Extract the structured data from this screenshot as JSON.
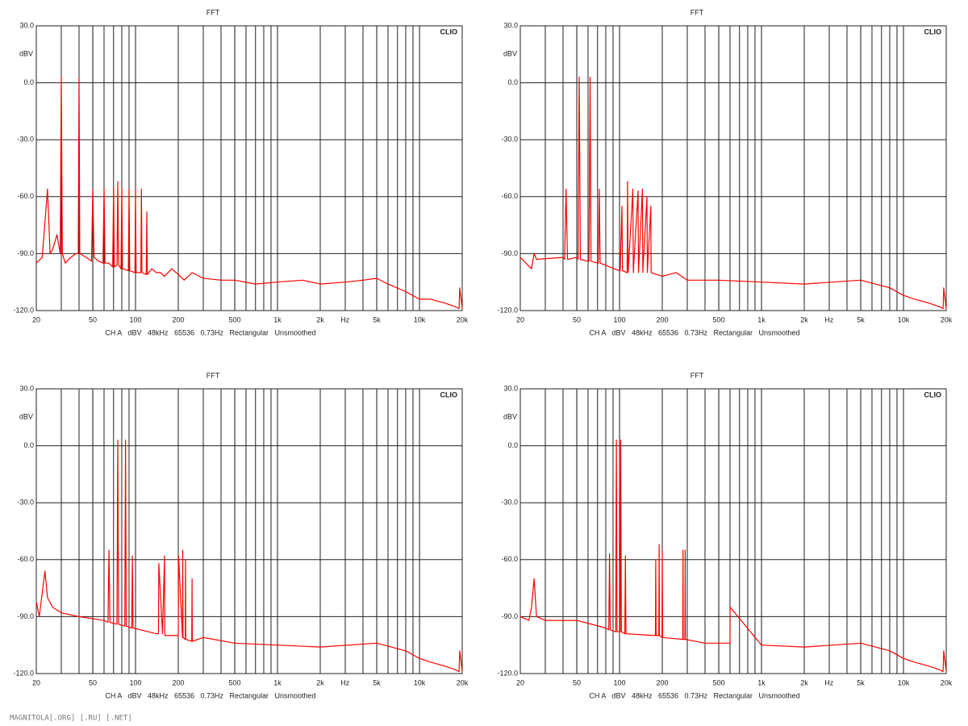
{
  "chart_data": [
    {
      "type": "line",
      "title": "FFT",
      "ylabel": "dBV",
      "xlabel": "Hz",
      "brand": "CLIO",
      "footer": "CH A   dBV   48kHz   65536   0.73Hz   Rectangular   Unsmoothed",
      "xscale": "log",
      "minor_grid": true,
      "color": "#ff0000",
      "xlim": [
        20,
        20000
      ],
      "ylim": [
        -120,
        30
      ],
      "xticks": [
        20,
        50,
        100,
        200,
        500,
        {
          "value": 1000,
          "label": "1k"
        },
        {
          "value": 2000,
          "label": "2k"
        },
        {
          "value": 5000,
          "label": "5k"
        },
        {
          "value": 10000,
          "label": "10k"
        },
        {
          "value": 20000,
          "label": "20k"
        }
      ],
      "yticks": [
        {
          "value": 30,
          "label": "30.0"
        },
        {
          "value": 0,
          "label": "0.0"
        },
        {
          "value": -30,
          "label": "-30.0"
        },
        {
          "value": -60,
          "label": "-60.0"
        },
        {
          "value": -90,
          "label": "-90.0"
        },
        {
          "value": -120,
          "label": "-120.0"
        }
      ],
      "x": [
        20,
        22,
        24,
        25,
        26,
        28,
        29.5,
        30,
        30.5,
        32,
        35,
        38,
        39.5,
        40,
        40.5,
        45,
        49,
        50,
        51,
        55,
        59,
        60,
        61,
        65,
        69,
        70,
        71,
        74,
        75,
        76,
        79,
        80,
        81,
        89,
        90,
        91,
        99,
        100,
        101,
        109,
        110,
        111,
        119,
        120,
        121,
        130,
        140,
        150,
        160,
        180,
        200,
        220,
        250,
        300,
        400,
        500,
        700,
        1000,
        1500,
        2000,
        3000,
        4000,
        5000,
        6000,
        8000,
        10000,
        12000,
        15000,
        18000,
        19000,
        19200,
        20000
      ],
      "values": [
        -95,
        -92,
        -56,
        -90,
        -88,
        -80,
        -90,
        3,
        -90,
        -95,
        -92,
        -90,
        -90,
        3,
        -90,
        -92,
        -94,
        -56,
        -92,
        -94,
        -95,
        -56,
        -95,
        -95,
        -97,
        -55,
        -97,
        -96,
        -52,
        -96,
        -98,
        -56,
        -98,
        -99,
        -56,
        -99,
        -100,
        -57,
        -100,
        -100,
        -56,
        -100,
        -101,
        -68,
        -101,
        -98,
        -100,
        -100,
        -102,
        -98,
        -101,
        -104,
        -100,
        -103,
        -104,
        -104,
        -106,
        -105,
        -104,
        -106,
        -105,
        -104,
        -103,
        -106,
        -110,
        -114,
        -114,
        -116,
        -118,
        -119,
        -108,
        -119
      ]
    },
    {
      "type": "line",
      "title": "FFT",
      "ylabel": "dBV",
      "xlabel": "Hz",
      "brand": "CLIO",
      "footer": "CH A   dBV   48kHz   65536   0.73Hz   Rectangular   Unsmoothed",
      "xscale": "log",
      "minor_grid": true,
      "color": "#ff0000",
      "xlim": [
        20,
        20000
      ],
      "ylim": [
        -120,
        30
      ],
      "xticks": [
        20,
        50,
        100,
        200,
        500,
        {
          "value": 1000,
          "label": "1k"
        },
        {
          "value": 2000,
          "label": "2k"
        },
        {
          "value": 5000,
          "label": "5k"
        },
        {
          "value": 10000,
          "label": "10k"
        },
        {
          "value": 20000,
          "label": "20k"
        }
      ],
      "yticks": [
        {
          "value": 30,
          "label": "30.0"
        },
        {
          "value": 0,
          "label": "0.0"
        },
        {
          "value": -30,
          "label": "-30.0"
        },
        {
          "value": -60,
          "label": "-60.0"
        },
        {
          "value": -90,
          "label": "-90.0"
        },
        {
          "value": -120,
          "label": "-120.0"
        }
      ],
      "x": [
        20,
        24,
        25,
        26,
        40,
        41,
        42,
        43,
        50,
        51,
        52,
        53,
        60,
        61,
        62,
        63,
        70,
        71,
        72,
        73,
        100,
        101,
        104,
        105,
        113,
        114,
        115,
        124,
        125,
        135,
        136,
        145,
        146,
        156,
        157,
        166,
        167,
        200,
        250,
        300,
        400,
        500,
        1000,
        2000,
        5000,
        8000,
        10000,
        12000,
        15000,
        18000,
        19000,
        19200,
        20000
      ],
      "values": [
        -92,
        -98,
        -90,
        -93,
        -92,
        -93,
        -56,
        -93,
        -92,
        -93,
        3,
        -93,
        -94,
        -94,
        3,
        -94,
        -95,
        -95,
        -56,
        -95,
        -99,
        -99,
        -65,
        -99,
        -100,
        -52,
        -100,
        -56,
        -100,
        -57,
        -100,
        -56,
        -100,
        -60,
        -100,
        -65,
        -100,
        -102,
        -100,
        -104,
        -104,
        -104,
        -105,
        -106,
        -104,
        -108,
        -112,
        -114,
        -116,
        -118,
        -119,
        -108,
        -119
      ]
    },
    {
      "type": "line",
      "title": "FFT",
      "ylabel": "dBV",
      "xlabel": "Hz",
      "brand": "CLIO",
      "footer": "CH A   dBV   48kHz   65536   0.73Hz   Rectangular   Unsmoothed",
      "xscale": "log",
      "minor_grid": true,
      "color": "#ff0000",
      "xlim": [
        20,
        20000
      ],
      "ylim": [
        -120,
        30
      ],
      "xticks": [
        20,
        50,
        100,
        200,
        500,
        {
          "value": 1000,
          "label": "1k"
        },
        {
          "value": 2000,
          "label": "2k"
        },
        {
          "value": 5000,
          "label": "5k"
        },
        {
          "value": 10000,
          "label": "10k"
        },
        {
          "value": 20000,
          "label": "20k"
        }
      ],
      "yticks": [
        {
          "value": 30,
          "label": "30.0"
        },
        {
          "value": 0,
          "label": "0.0"
        },
        {
          "value": -30,
          "label": "-30.0"
        },
        {
          "value": -60,
          "label": "-60.0"
        },
        {
          "value": -90,
          "label": "-90.0"
        },
        {
          "value": -120,
          "label": "-120.0"
        }
      ],
      "x": [
        20,
        21,
        23,
        24,
        26,
        30,
        40,
        60,
        64,
        65,
        66,
        74,
        75,
        76,
        84,
        85,
        86,
        94,
        95,
        96,
        140,
        145,
        146,
        155,
        160,
        161,
        190,
        200,
        201,
        214,
        215,
        216,
        224,
        225,
        226,
        249,
        250,
        251,
        300,
        500,
        1000,
        2000,
        5000,
        8000,
        10000,
        12000,
        15000,
        18000,
        19000,
        19200,
        20000
      ],
      "values": [
        -82,
        -90,
        -66,
        -80,
        -85,
        -88,
        -90,
        -92,
        -93,
        -55,
        -93,
        -94,
        3,
        -94,
        -95,
        3,
        -95,
        -96,
        -58,
        -96,
        -99,
        -99,
        -62,
        -99,
        -58,
        -100,
        -100,
        -100,
        -58,
        -101,
        -55,
        -101,
        -102,
        -60,
        -102,
        -103,
        -70,
        -103,
        -101,
        -104,
        -105,
        -106,
        -104,
        -108,
        -112,
        -114,
        -116,
        -118,
        -119,
        -108,
        -119
      ]
    },
    {
      "type": "line",
      "title": "FFT",
      "ylabel": "dBV",
      "xlabel": "Hz",
      "brand": "CLIO",
      "footer": "CH A   dBV   48kHz   65536   0.73Hz   Rectangular   Unsmoothed",
      "xscale": "log",
      "minor_grid": true,
      "color": "#ff0000",
      "xlim": [
        20,
        20000
      ],
      "ylim": [
        -120,
        30
      ],
      "xticks": [
        20,
        50,
        100,
        200,
        500,
        {
          "value": 1000,
          "label": "1k"
        },
        {
          "value": 2000,
          "label": "2k"
        },
        {
          "value": 5000,
          "label": "5k"
        },
        {
          "value": 10000,
          "label": "10k"
        },
        {
          "value": 20000,
          "label": "20k"
        }
      ],
      "yticks": [
        {
          "value": 30,
          "label": "30.0"
        },
        {
          "value": 0,
          "label": "0.0"
        },
        {
          "value": -30,
          "label": "-30.0"
        },
        {
          "value": -60,
          "label": "-60.0"
        },
        {
          "value": -90,
          "label": "-90.0"
        },
        {
          "value": -120,
          "label": "-120.0"
        }
      ],
      "x": [
        20,
        23,
        24,
        25,
        26,
        30,
        50,
        80,
        84,
        85,
        86,
        94,
        95,
        96,
        101,
        102,
        103,
        109,
        110,
        111,
        179,
        180,
        181,
        189,
        190,
        191,
        199,
        200,
        201,
        279,
        280,
        281,
        289,
        290,
        291,
        400,
        600,
        601,
        1000,
        2000,
        5000,
        8000,
        10000,
        12000,
        15000,
        18000,
        19000,
        19200,
        20000
      ],
      "values": [
        -90,
        -92,
        -85,
        -70,
        -90,
        -92,
        -92,
        -96,
        -97,
        -57,
        -97,
        -98,
        3,
        -98,
        -98,
        3,
        -98,
        -99,
        -58,
        -99,
        -100,
        -60,
        -100,
        -100,
        -52,
        -100,
        -101,
        -55,
        -101,
        -102,
        -55,
        -102,
        -102,
        -55,
        -102,
        -104,
        -104,
        -85,
        -105,
        -106,
        -104,
        -108,
        -112,
        -114,
        -116,
        -118,
        -119,
        -108,
        -119
      ]
    }
  ],
  "watermark": "MAGNITOLA[.ORG] [.RU] [.NET]"
}
